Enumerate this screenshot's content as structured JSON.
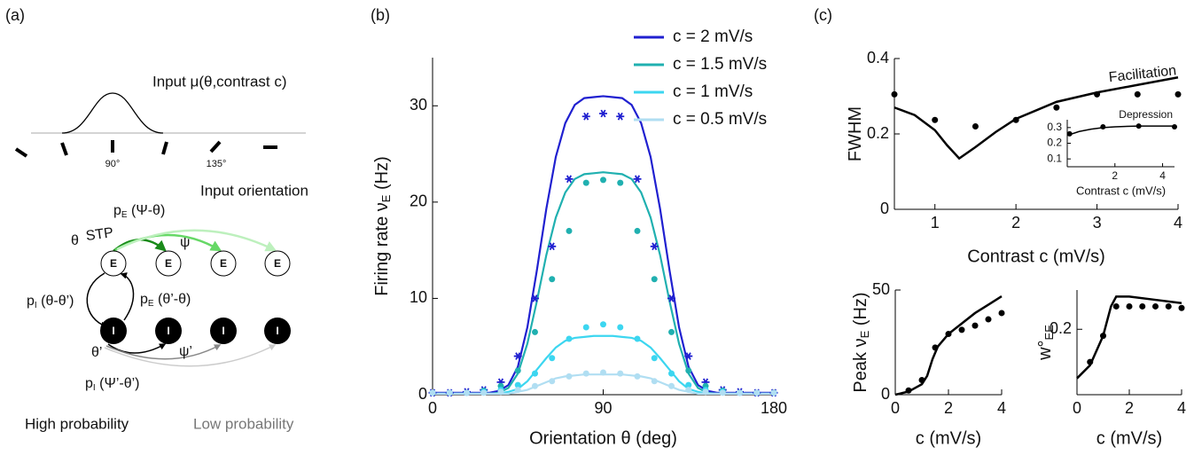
{
  "panel_labels": [
    "(a)",
    "(b)",
    "(c)"
  ],
  "diagram": {
    "input_label": "Input μ(θ,contrast c)",
    "angle_labels": [
      "90°",
      "135°"
    ],
    "orientation_label": "Input orientation",
    "pE_top": [
      "p",
      "E",
      " (Ψ-θ)"
    ],
    "theta": "θ",
    "stp": "STP",
    "psi": "ψ",
    "e_nodes": [
      "E",
      "E",
      "E",
      "E"
    ],
    "i_nodes": [
      "I",
      "I",
      "I",
      "I"
    ],
    "pI_left": [
      "p",
      "I",
      " (θ-θ’)"
    ],
    "pE_mid": [
      "p",
      "E",
      " (θ’-θ)"
    ],
    "theta_prime": "θ’",
    "psi_prime": "ψ’",
    "pI_bottom": [
      "p",
      "I",
      " (Ψ’-θ’)"
    ],
    "high": "High probability",
    "low": "Low probability"
  },
  "chart_data": [
    {
      "type": "line",
      "xlabel": "Orientation θ (deg)",
      "ylabel": "Firing rate ν",
      "ylabel_sub": "E",
      "ylabel_unit": " (Hz)",
      "xlim": [
        0,
        180
      ],
      "xticks": [
        0,
        90,
        180
      ],
      "ylim": [
        0,
        35
      ],
      "yticks": [
        0,
        10,
        20,
        30
      ],
      "legend": "top-right",
      "series": [
        {
          "name": "c = 2 mV/s",
          "color": "#2020d0",
          "style": "line",
          "x": [
            0,
            5,
            10,
            15,
            20,
            25,
            30,
            35,
            40,
            45,
            50,
            55,
            60,
            65,
            70,
            75,
            80,
            85,
            90,
            95,
            100,
            105,
            110,
            115,
            120,
            125,
            130,
            135,
            140,
            145,
            150,
            155,
            160,
            165,
            170,
            175,
            180
          ],
          "values": [
            0.2,
            0.2,
            0.2,
            0.2,
            0.2,
            0.2,
            0.2,
            0.4,
            1.0,
            2.9,
            7.0,
            12.9,
            19.3,
            24.7,
            28.2,
            30.1,
            30.8,
            30.9,
            31.0,
            30.9,
            30.8,
            30.1,
            28.2,
            24.7,
            19.3,
            12.9,
            7.0,
            2.9,
            1.0,
            0.4,
            0.2,
            0.2,
            0.2,
            0.2,
            0.2,
            0.2,
            0.2
          ]
        },
        {
          "name": "c = 1.5 mV/s",
          "color": "#20b0b0",
          "style": "line",
          "x": [
            0,
            5,
            10,
            15,
            20,
            25,
            30,
            35,
            40,
            45,
            50,
            55,
            60,
            65,
            70,
            75,
            80,
            85,
            90,
            95,
            100,
            105,
            110,
            115,
            120,
            125,
            130,
            135,
            140,
            145,
            150,
            155,
            160,
            165,
            170,
            175,
            180
          ],
          "values": [
            0.1,
            0.1,
            0.1,
            0.1,
            0.1,
            0.1,
            0.1,
            0.2,
            0.7,
            2.2,
            5.3,
            9.7,
            14.5,
            18.4,
            21.0,
            22.4,
            22.9,
            23.0,
            23.1,
            23.0,
            22.9,
            22.4,
            21.0,
            18.4,
            14.5,
            9.7,
            5.3,
            2.2,
            0.7,
            0.2,
            0.1,
            0.1,
            0.1,
            0.1,
            0.1,
            0.1,
            0.1
          ]
        },
        {
          "name": "c = 1 mV/s",
          "color": "#3cd6f0",
          "style": "line",
          "x": [
            0,
            5,
            10,
            15,
            20,
            25,
            30,
            35,
            40,
            45,
            50,
            55,
            60,
            65,
            70,
            75,
            80,
            85,
            90,
            95,
            100,
            105,
            110,
            115,
            120,
            125,
            130,
            135,
            140,
            145,
            150,
            155,
            160,
            165,
            170,
            175,
            180
          ],
          "values": [
            0.1,
            0.1,
            0.1,
            0.1,
            0.1,
            0.1,
            0.1,
            0.1,
            0.3,
            0.6,
            1.4,
            2.6,
            3.8,
            4.9,
            5.6,
            5.9,
            6.0,
            6.1,
            6.1,
            6.1,
            6.0,
            5.9,
            5.6,
            4.9,
            3.8,
            2.6,
            1.4,
            0.6,
            0.3,
            0.1,
            0.1,
            0.1,
            0.1,
            0.1,
            0.1,
            0.1,
            0.1
          ]
        },
        {
          "name": "c = 0.5 mV/s",
          "color": "#b0def2",
          "style": "line",
          "x": [
            0,
            5,
            10,
            15,
            20,
            25,
            30,
            35,
            40,
            45,
            50,
            55,
            60,
            65,
            70,
            75,
            80,
            85,
            90,
            95,
            100,
            105,
            110,
            115,
            120,
            125,
            130,
            135,
            140,
            145,
            150,
            155,
            160,
            165,
            170,
            175,
            180
          ],
          "values": [
            0.1,
            0.1,
            0.1,
            0.1,
            0.1,
            0.1,
            0.1,
            0.1,
            0.1,
            0.3,
            0.5,
            0.9,
            1.3,
            1.7,
            1.9,
            2.0,
            2.1,
            2.1,
            2.1,
            2.1,
            2.1,
            2.0,
            1.9,
            1.7,
            1.3,
            0.9,
            0.5,
            0.3,
            0.1,
            0.1,
            0.1,
            0.1,
            0.1,
            0.1,
            0.1,
            0.1,
            0.1
          ]
        },
        {
          "color": "#2020d0",
          "style": "star",
          "x": [
            0,
            9,
            18,
            27,
            36,
            45,
            54,
            63,
            72,
            81,
            90,
            99,
            108,
            117,
            126,
            135,
            144,
            153,
            162,
            171,
            180
          ],
          "values": [
            0.2,
            0.2,
            0.3,
            0.5,
            1.3,
            4.0,
            10.0,
            15.4,
            22.4,
            28.9,
            29.2,
            28.9,
            22.4,
            15.4,
            10.0,
            4.0,
            1.3,
            0.5,
            0.3,
            0.2,
            0.2
          ]
        },
        {
          "color": "#20b0b0",
          "style": "dot",
          "x": [
            0,
            9,
            18,
            27,
            36,
            45,
            54,
            63,
            72,
            81,
            90,
            99,
            108,
            117,
            126,
            135,
            144,
            153,
            162,
            171,
            180
          ],
          "values": [
            0.2,
            0.2,
            0.2,
            0.4,
            0.9,
            2.5,
            6.5,
            12.0,
            17.0,
            22.0,
            22.3,
            22.0,
            17.0,
            12.0,
            6.5,
            2.5,
            0.9,
            0.4,
            0.2,
            0.2,
            0.2
          ]
        },
        {
          "color": "#3cd6f0",
          "style": "dot",
          "x": [
            0,
            9,
            18,
            27,
            36,
            45,
            54,
            63,
            72,
            81,
            90,
            99,
            108,
            117,
            126,
            135,
            144,
            153,
            162,
            171,
            180
          ],
          "values": [
            0.2,
            0.2,
            0.2,
            0.3,
            0.5,
            1.0,
            2.2,
            3.8,
            5.8,
            7.0,
            7.3,
            7.0,
            5.8,
            3.8,
            2.2,
            1.0,
            0.5,
            0.3,
            0.2,
            0.2,
            0.2
          ]
        },
        {
          "color": "#b0def2",
          "style": "dot",
          "x": [
            0,
            9,
            18,
            27,
            36,
            45,
            54,
            63,
            72,
            81,
            90,
            99,
            108,
            117,
            126,
            135,
            144,
            153,
            162,
            171,
            180
          ],
          "values": [
            0.2,
            0.2,
            0.2,
            0.2,
            0.3,
            0.5,
            0.9,
            1.4,
            1.9,
            2.2,
            2.3,
            2.2,
            1.9,
            1.4,
            0.9,
            0.5,
            0.3,
            0.2,
            0.2,
            0.2,
            0.2
          ]
        }
      ]
    },
    {
      "type": "line",
      "xlabel": "Contrast c (mV/s)",
      "ylabel": "FWHM",
      "annotation": "Facilitation",
      "xlim": [
        0.5,
        4
      ],
      "xticks": [
        1,
        2,
        3,
        4
      ],
      "ylim": [
        0,
        0.4
      ],
      "yticks": [
        0,
        0.2,
        0.4
      ],
      "series": [
        {
          "color": "#000000",
          "style": "line",
          "x": [
            0.5,
            0.75,
            1,
            1.15,
            1.3,
            1.5,
            1.75,
            2,
            2.5,
            3,
            3.5,
            4
          ],
          "values": [
            0.27,
            0.25,
            0.21,
            0.17,
            0.135,
            0.165,
            0.205,
            0.24,
            0.285,
            0.31,
            0.33,
            0.35
          ]
        },
        {
          "color": "#000000",
          "style": "dot",
          "x": [
            0.5,
            1,
            1.5,
            2,
            2.5,
            3,
            3.5,
            4
          ],
          "values": [
            0.305,
            0.237,
            0.22,
            0.237,
            0.27,
            0.305,
            0.305,
            0.305
          ]
        }
      ]
    },
    {
      "type": "line",
      "xlabel": "Contrast c (mV/s)",
      "annotation": "Depression",
      "xlim": [
        0,
        4.5
      ],
      "xticks": [
        2,
        4
      ],
      "ylim": [
        0.05,
        0.35
      ],
      "yticks": [
        0.1,
        0.2,
        0.3
      ],
      "series": [
        {
          "color": "#000000",
          "style": "line",
          "x": [
            0,
            0.5,
            1,
            1.5,
            2,
            3,
            4,
            4.5
          ],
          "values": [
            0.25,
            0.275,
            0.29,
            0.3,
            0.305,
            0.31,
            0.31,
            0.31
          ]
        },
        {
          "color": "#000000",
          "style": "dot",
          "x": [
            0.1,
            1.5,
            3,
            4.5
          ],
          "values": [
            0.26,
            0.305,
            0.31,
            0.305
          ]
        }
      ]
    },
    {
      "type": "line",
      "xlabel": "c (mV/s)",
      "ylabel": "Peak ν",
      "ylabel_sub": "E",
      "ylabel_unit": " (Hz)",
      "xlim": [
        0,
        4
      ],
      "xticks": [
        0,
        2,
        4
      ],
      "ylim": [
        0,
        50
      ],
      "yticks": [
        0,
        50
      ],
      "series": [
        {
          "color": "#000000",
          "style": "line",
          "x": [
            0,
            0.5,
            1,
            1.2,
            1.4,
            1.6,
            2,
            2.5,
            3,
            3.5,
            4
          ],
          "values": [
            0,
            1.5,
            5,
            9,
            17,
            23,
            29,
            34,
            39,
            43,
            47
          ]
        },
        {
          "color": "#000000",
          "style": "dot",
          "x": [
            0.5,
            1,
            1.5,
            2,
            2.5,
            3,
            3.5,
            4
          ],
          "values": [
            2,
            7,
            22.5,
            29,
            31,
            33,
            36,
            39
          ]
        }
      ]
    },
    {
      "type": "line",
      "xlabel": "c (mV/s)",
      "ylabel": "w°",
      "ylabel_sub": "EE",
      "xlim": [
        0,
        4
      ],
      "xticks": [
        0,
        2,
        4
      ],
      "ylim": [
        0,
        0.32
      ],
      "yticks": [
        0.2
      ],
      "series": [
        {
          "color": "#000000",
          "style": "line",
          "x": [
            0,
            0.5,
            1,
            1.3,
            1.5,
            2,
            3,
            4
          ],
          "values": [
            0.05,
            0.09,
            0.18,
            0.27,
            0.3,
            0.3,
            0.29,
            0.28
          ]
        },
        {
          "color": "#000000",
          "style": "dot",
          "x": [
            0.5,
            1,
            1.5,
            2,
            2.5,
            3,
            3.5,
            4
          ],
          "values": [
            0.1,
            0.18,
            0.27,
            0.27,
            0.27,
            0.27,
            0.27,
            0.265
          ]
        }
      ]
    }
  ]
}
